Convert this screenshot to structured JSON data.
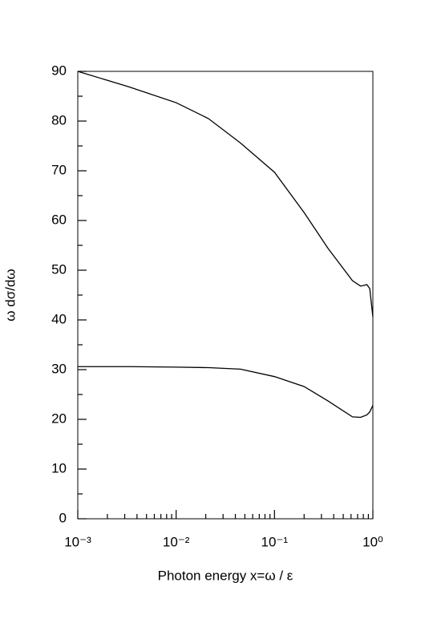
{
  "chart_data": {
    "type": "line",
    "xlabel": "Photon energy  x=ω / ε",
    "ylabel": "ω dσ/dω",
    "x": [
      0.001,
      0.0033,
      0.01,
      0.0213,
      0.045,
      0.1,
      0.2,
      0.35,
      0.62,
      0.75,
      0.87,
      0.93,
      1
    ],
    "series": [
      {
        "color": "#000000",
        "values": [
          90,
          86.9,
          83.7,
          80.5,
          75.6,
          69.7,
          61.6,
          54.4,
          47.9,
          46.8,
          47.1,
          46.3,
          40.6
        ]
      },
      {
        "color": "#000000",
        "values": [
          30.6,
          30.6,
          30.5,
          30.4,
          30.1,
          28.6,
          26.6,
          23.7,
          20.5,
          20.4,
          20.9,
          21.5,
          22.8
        ]
      }
    ],
    "xscale": "log",
    "xlim": [
      0.001,
      1
    ],
    "xticks": [
      {
        "value": 0.001,
        "label": "10⁻³"
      },
      {
        "value": 0.01,
        "label": "10⁻²"
      },
      {
        "value": 0.1,
        "label": "10⁻¹"
      },
      {
        "value": 1,
        "label": "10⁰"
      }
    ],
    "ylim": [
      0,
      90
    ],
    "yticks": [
      0,
      10,
      20,
      30,
      40,
      50,
      60,
      70,
      80,
      90
    ]
  }
}
